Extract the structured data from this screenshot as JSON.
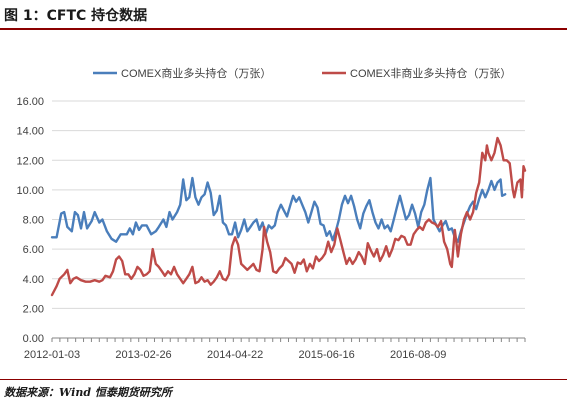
{
  "header": {
    "title": "图 1：CFTC 持仓数据"
  },
  "footer": {
    "source": "数据来源：Wind 恒泰期货研究所"
  },
  "colors": {
    "commercial": "#4a7ebb",
    "noncommercial": "#be4b48",
    "grid": "#d9d9d9",
    "axis": "#868686",
    "accent_rule": "#8b0000"
  },
  "chart_data": {
    "type": "line",
    "x_start": "2012-01-03",
    "x_end": "2017-12-26",
    "x_tick_labels": [
      "2012-01-03",
      "2013-02-26",
      "2014-04-22",
      "2015-06-16",
      "2016-08-09"
    ],
    "y_ticks": [
      "0.00",
      "2.00",
      "4.00",
      "6.00",
      "8.00",
      "10.00",
      "12.00",
      "14.00",
      "16.00"
    ],
    "ylim": [
      0,
      16
    ],
    "grid": true,
    "legend_position": "top",
    "x_index_range": [
      0,
      310
    ],
    "series": [
      {
        "name": "COMEX商业多头持仓（万张）",
        "color": "#4a7ebb",
        "points": [
          [
            0,
            6.8
          ],
          [
            3,
            6.8
          ],
          [
            6,
            8.4
          ],
          [
            8,
            8.5
          ],
          [
            10,
            7.5
          ],
          [
            13,
            7.2
          ],
          [
            15,
            8.5
          ],
          [
            17,
            8.3
          ],
          [
            19,
            7.4
          ],
          [
            21,
            8.5
          ],
          [
            23,
            7.4
          ],
          [
            26,
            7.9
          ],
          [
            28,
            8.5
          ],
          [
            31,
            7.8
          ],
          [
            33,
            8.0
          ],
          [
            36,
            7.2
          ],
          [
            39,
            6.7
          ],
          [
            42,
            6.5
          ],
          [
            45,
            7.0
          ],
          [
            49,
            7.0
          ],
          [
            51,
            7.4
          ],
          [
            53,
            7.0
          ],
          [
            55,
            7.8
          ],
          [
            57,
            7.3
          ],
          [
            59,
            7.6
          ],
          [
            62,
            7.6
          ],
          [
            65,
            7.0
          ],
          [
            68,
            7.2
          ],
          [
            70,
            7.5
          ],
          [
            73,
            8.0
          ],
          [
            75,
            7.5
          ],
          [
            77,
            8.5
          ],
          [
            79,
            8.0
          ],
          [
            82,
            8.5
          ],
          [
            84,
            9.0
          ],
          [
            86,
            10.7
          ],
          [
            88,
            9.3
          ],
          [
            90,
            9.5
          ],
          [
            92,
            10.8
          ],
          [
            94,
            9.5
          ],
          [
            96,
            9.0
          ],
          [
            98,
            9.5
          ],
          [
            100,
            9.7
          ],
          [
            102,
            10.5
          ],
          [
            104,
            9.8
          ],
          [
            106,
            8.3
          ],
          [
            108,
            8.6
          ],
          [
            110,
            9.6
          ],
          [
            112,
            7.8
          ],
          [
            114,
            7.6
          ],
          [
            116,
            7.0
          ],
          [
            118,
            7.0
          ],
          [
            120,
            7.8
          ],
          [
            122,
            6.8
          ],
          [
            124,
            7.3
          ],
          [
            126,
            8.0
          ],
          [
            128,
            7.2
          ],
          [
            130,
            7.5
          ],
          [
            132,
            7.8
          ],
          [
            134,
            8.0
          ],
          [
            136,
            7.3
          ],
          [
            138,
            7.8
          ],
          [
            140,
            7.0
          ],
          [
            142,
            7.6
          ],
          [
            144,
            7.4
          ],
          [
            146,
            7.6
          ],
          [
            148,
            8.5
          ],
          [
            150,
            9.0
          ],
          [
            152,
            8.6
          ],
          [
            154,
            8.2
          ],
          [
            156,
            8.9
          ],
          [
            158,
            9.6
          ],
          [
            160,
            9.2
          ],
          [
            162,
            9.5
          ],
          [
            164,
            9.0
          ],
          [
            166,
            8.5
          ],
          [
            168,
            7.8
          ],
          [
            170,
            8.5
          ],
          [
            172,
            9.2
          ],
          [
            174,
            8.8
          ],
          [
            176,
            7.7
          ],
          [
            178,
            7.6
          ],
          [
            180,
            6.9
          ],
          [
            182,
            7.2
          ],
          [
            184,
            6.6
          ],
          [
            186,
            7.2
          ],
          [
            188,
            8.0
          ],
          [
            190,
            9.0
          ],
          [
            192,
            9.6
          ],
          [
            194,
            9.1
          ],
          [
            196,
            9.6
          ],
          [
            198,
            8.9
          ],
          [
            200,
            8.0
          ],
          [
            202,
            7.4
          ],
          [
            204,
            8.4
          ],
          [
            206,
            8.9
          ],
          [
            208,
            9.3
          ],
          [
            210,
            8.5
          ],
          [
            212,
            7.8
          ],
          [
            214,
            7.4
          ],
          [
            216,
            8.0
          ],
          [
            218,
            7.4
          ],
          [
            220,
            7.6
          ],
          [
            222,
            7.2
          ],
          [
            224,
            8.0
          ],
          [
            226,
            8.8
          ],
          [
            228,
            9.6
          ],
          [
            230,
            8.8
          ],
          [
            232,
            8.0
          ],
          [
            234,
            8.3
          ],
          [
            236,
            9.0
          ],
          [
            238,
            8.4
          ],
          [
            240,
            7.5
          ],
          [
            242,
            8.5
          ],
          [
            244,
            9.0
          ],
          [
            246,
            10.0
          ],
          [
            248,
            10.8
          ],
          [
            250,
            8.0
          ],
          [
            252,
            7.6
          ],
          [
            254,
            7.2
          ],
          [
            256,
            7.6
          ],
          [
            258,
            7.9
          ],
          [
            260,
            7.3
          ],
          [
            262,
            7.4
          ],
          [
            264,
            6.8
          ],
          [
            266,
            6.5
          ],
          [
            268,
            7.2
          ],
          [
            270,
            7.8
          ],
          [
            272,
            8.4
          ],
          [
            274,
            8.9
          ],
          [
            276,
            9.2
          ],
          [
            278,
            8.7
          ],
          [
            280,
            9.4
          ],
          [
            282,
            10.0
          ],
          [
            284,
            9.5
          ],
          [
            286,
            10.0
          ],
          [
            288,
            10.6
          ],
          [
            290,
            10.0
          ],
          [
            292,
            10.5
          ],
          [
            294,
            10.7
          ],
          [
            295,
            9.6
          ],
          [
            297,
            9.7
          ]
        ]
      },
      {
        "name": "COMEX非商业多头持仓（万张）",
        "color": "#be4b48",
        "points": [
          [
            0,
            2.9
          ],
          [
            3,
            3.5
          ],
          [
            5,
            4.0
          ],
          [
            8,
            4.3
          ],
          [
            10,
            4.6
          ],
          [
            12,
            3.7
          ],
          [
            14,
            4.0
          ],
          [
            16,
            4.1
          ],
          [
            19,
            3.9
          ],
          [
            22,
            3.8
          ],
          [
            25,
            3.8
          ],
          [
            28,
            3.9
          ],
          [
            31,
            3.8
          ],
          [
            33,
            3.9
          ],
          [
            35,
            4.2
          ],
          [
            38,
            4.1
          ],
          [
            40,
            4.5
          ],
          [
            42,
            5.3
          ],
          [
            44,
            5.5
          ],
          [
            46,
            5.2
          ],
          [
            48,
            4.3
          ],
          [
            50,
            4.3
          ],
          [
            52,
            4.0
          ],
          [
            54,
            4.3
          ],
          [
            56,
            4.8
          ],
          [
            58,
            4.6
          ],
          [
            60,
            4.2
          ],
          [
            62,
            4.3
          ],
          [
            64,
            4.5
          ],
          [
            66,
            6.0
          ],
          [
            68,
            5.0
          ],
          [
            70,
            4.8
          ],
          [
            72,
            4.5
          ],
          [
            74,
            4.2
          ],
          [
            76,
            4.5
          ],
          [
            78,
            4.3
          ],
          [
            80,
            4.8
          ],
          [
            82,
            4.3
          ],
          [
            84,
            4.0
          ],
          [
            86,
            3.7
          ],
          [
            88,
            4.0
          ],
          [
            90,
            4.3
          ],
          [
            92,
            4.8
          ],
          [
            94,
            3.7
          ],
          [
            96,
            3.8
          ],
          [
            98,
            4.1
          ],
          [
            100,
            3.8
          ],
          [
            102,
            3.9
          ],
          [
            104,
            3.6
          ],
          [
            106,
            3.8
          ],
          [
            108,
            4.1
          ],
          [
            110,
            4.5
          ],
          [
            112,
            4.0
          ],
          [
            114,
            3.9
          ],
          [
            116,
            4.3
          ],
          [
            118,
            6.2
          ],
          [
            120,
            6.8
          ],
          [
            122,
            6.3
          ],
          [
            124,
            5.0
          ],
          [
            126,
            4.8
          ],
          [
            128,
            4.6
          ],
          [
            130,
            4.8
          ],
          [
            132,
            5.0
          ],
          [
            134,
            4.6
          ],
          [
            136,
            4.5
          ],
          [
            138,
            6.0
          ],
          [
            139,
            7.5
          ],
          [
            141,
            6.5
          ],
          [
            143,
            5.8
          ],
          [
            145,
            4.5
          ],
          [
            147,
            4.4
          ],
          [
            149,
            4.7
          ],
          [
            151,
            4.9
          ],
          [
            153,
            5.4
          ],
          [
            155,
            5.2
          ],
          [
            157,
            5.0
          ],
          [
            159,
            4.4
          ],
          [
            161,
            5.1
          ],
          [
            163,
            5.0
          ],
          [
            165,
            5.3
          ],
          [
            167,
            4.5
          ],
          [
            169,
            5.0
          ],
          [
            171,
            4.7
          ],
          [
            173,
            5.5
          ],
          [
            175,
            5.2
          ],
          [
            177,
            5.4
          ],
          [
            179,
            5.7
          ],
          [
            181,
            6.5
          ],
          [
            183,
            5.8
          ],
          [
            185,
            6.3
          ],
          [
            187,
            7.4
          ],
          [
            189,
            6.6
          ],
          [
            191,
            5.8
          ],
          [
            193,
            5.0
          ],
          [
            195,
            5.4
          ],
          [
            197,
            5.0
          ],
          [
            199,
            5.3
          ],
          [
            201,
            5.8
          ],
          [
            203,
            5.5
          ],
          [
            205,
            5.0
          ],
          [
            207,
            6.4
          ],
          [
            209,
            5.9
          ],
          [
            211,
            5.5
          ],
          [
            213,
            6.0
          ],
          [
            215,
            5.2
          ],
          [
            217,
            5.6
          ],
          [
            219,
            6.2
          ],
          [
            221,
            5.5
          ],
          [
            223,
            6.0
          ],
          [
            225,
            6.7
          ],
          [
            227,
            6.6
          ],
          [
            229,
            6.9
          ],
          [
            231,
            6.8
          ],
          [
            233,
            6.3
          ],
          [
            235,
            6.3
          ],
          [
            237,
            7.0
          ],
          [
            239,
            7.3
          ],
          [
            241,
            7.5
          ],
          [
            243,
            7.3
          ],
          [
            245,
            7.8
          ],
          [
            247,
            8.0
          ],
          [
            249,
            7.8
          ],
          [
            251,
            7.7
          ],
          [
            253,
            7.5
          ],
          [
            255,
            7.9
          ],
          [
            257,
            6.5
          ],
          [
            259,
            6.0
          ],
          [
            261,
            5.0
          ],
          [
            262,
            4.8
          ],
          [
            264,
            7.3
          ],
          [
            265,
            6.5
          ],
          [
            266,
            5.5
          ],
          [
            268,
            7.0
          ],
          [
            270,
            8.0
          ],
          [
            272,
            8.5
          ],
          [
            274,
            8.0
          ],
          [
            276,
            8.5
          ],
          [
            278,
            9.8
          ],
          [
            280,
            10.5
          ],
          [
            282,
            12.5
          ],
          [
            284,
            12.0
          ],
          [
            285,
            13.0
          ],
          [
            286,
            12.5
          ],
          [
            288,
            12.0
          ],
          [
            290,
            12.5
          ],
          [
            292,
            13.5
          ],
          [
            294,
            13.0
          ],
          [
            296,
            12.0
          ],
          [
            298,
            12.0
          ],
          [
            300,
            11.8
          ],
          [
            302,
            10.0
          ],
          [
            303,
            9.5
          ],
          [
            305,
            10.5
          ],
          [
            307,
            10.7
          ],
          [
            308,
            9.5
          ],
          [
            309,
            11.6
          ],
          [
            310,
            11.3
          ]
        ]
      }
    ]
  }
}
